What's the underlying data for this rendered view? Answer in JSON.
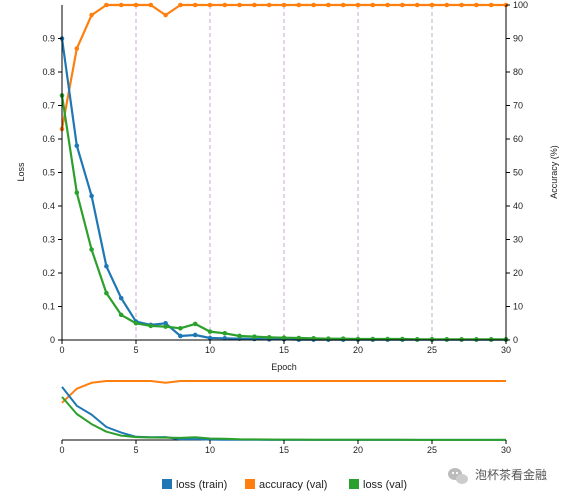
{
  "chart_data": [
    {
      "type": "line",
      "xlabel": "Epoch",
      "ylabel": "Loss",
      "ylabel_right": "Accuracy (%)",
      "xlim": [
        0,
        30
      ],
      "ylim": [
        0,
        1
      ],
      "ylim_right": [
        0,
        100
      ],
      "x_ticks": [
        0,
        5,
        10,
        15,
        20,
        25,
        30
      ],
      "y_ticks": [
        0,
        0.1,
        0.2,
        0.3,
        0.4,
        0.5,
        0.6,
        0.7,
        0.8,
        0.9
      ],
      "y_ticks_right": [
        0,
        10,
        20,
        30,
        40,
        50,
        60,
        70,
        80,
        90,
        100
      ],
      "vertical_grid": "dashed at every 5 epochs",
      "series": [
        {
          "name": "loss (train)",
          "axis": "left",
          "color": "#1f77b4",
          "x": [
            0,
            1,
            2,
            3,
            4,
            5,
            6,
            7,
            8,
            9,
            10,
            11,
            12,
            13,
            14,
            15,
            16,
            17,
            18,
            19,
            20,
            21,
            22,
            23,
            24,
            25,
            26,
            27,
            28,
            29,
            30
          ],
          "y": [
            0.9,
            0.58,
            0.43,
            0.22,
            0.125,
            0.055,
            0.045,
            0.05,
            0.012,
            0.015,
            0.006,
            0.005,
            0.004,
            0.003,
            0.002,
            0.002,
            0.001,
            0.001,
            0.001,
            0.001,
            0.001,
            0.001,
            0.001,
            0.001,
            0.001,
            0.001,
            0.001,
            0.001,
            0.001,
            0.001,
            0.001
          ]
        },
        {
          "name": "accuracy (val)",
          "axis": "right",
          "color": "#ff7f0e",
          "x": [
            0,
            1,
            2,
            3,
            4,
            5,
            6,
            7,
            8,
            9,
            10,
            11,
            12,
            13,
            14,
            15,
            16,
            17,
            18,
            19,
            20,
            21,
            22,
            23,
            24,
            25,
            26,
            27,
            28,
            29,
            30
          ],
          "y": [
            63,
            87,
            97,
            100,
            100,
            100,
            100,
            97,
            100,
            100,
            100,
            100,
            100,
            100,
            100,
            100,
            100,
            100,
            100,
            100,
            100,
            100,
            100,
            100,
            100,
            100,
            100,
            100,
            100,
            100,
            100
          ]
        },
        {
          "name": "loss (val)",
          "axis": "left",
          "color": "#2ca02c",
          "x": [
            0,
            1,
            2,
            3,
            4,
            5,
            6,
            7,
            8,
            9,
            10,
            11,
            12,
            13,
            14,
            15,
            16,
            17,
            18,
            19,
            20,
            21,
            22,
            23,
            24,
            25,
            26,
            27,
            28,
            29,
            30
          ],
          "y": [
            0.73,
            0.44,
            0.27,
            0.14,
            0.075,
            0.05,
            0.042,
            0.04,
            0.035,
            0.048,
            0.025,
            0.02,
            0.012,
            0.01,
            0.008,
            0.007,
            0.006,
            0.005,
            0.004,
            0.004,
            0.003,
            0.003,
            0.003,
            0.003,
            0.002,
            0.002,
            0.002,
            0.002,
            0.002,
            0.002,
            0.002
          ]
        }
      ]
    },
    {
      "type": "line",
      "role": "overview / brush of the chart above",
      "xlim": [
        0,
        30
      ],
      "x_ticks": [
        0,
        5,
        10,
        15,
        20,
        25,
        30
      ]
    }
  ],
  "legend": {
    "placement": "bottom-center",
    "items": [
      {
        "label": "loss (train)",
        "color": "#1f77b4"
      },
      {
        "label": "accuracy (val)",
        "color": "#ff7f0e"
      },
      {
        "label": "loss (val)",
        "color": "#2ca02c"
      }
    ]
  },
  "watermark": {
    "text": "泡杯茶看金融",
    "icon": "wechat-icon"
  }
}
